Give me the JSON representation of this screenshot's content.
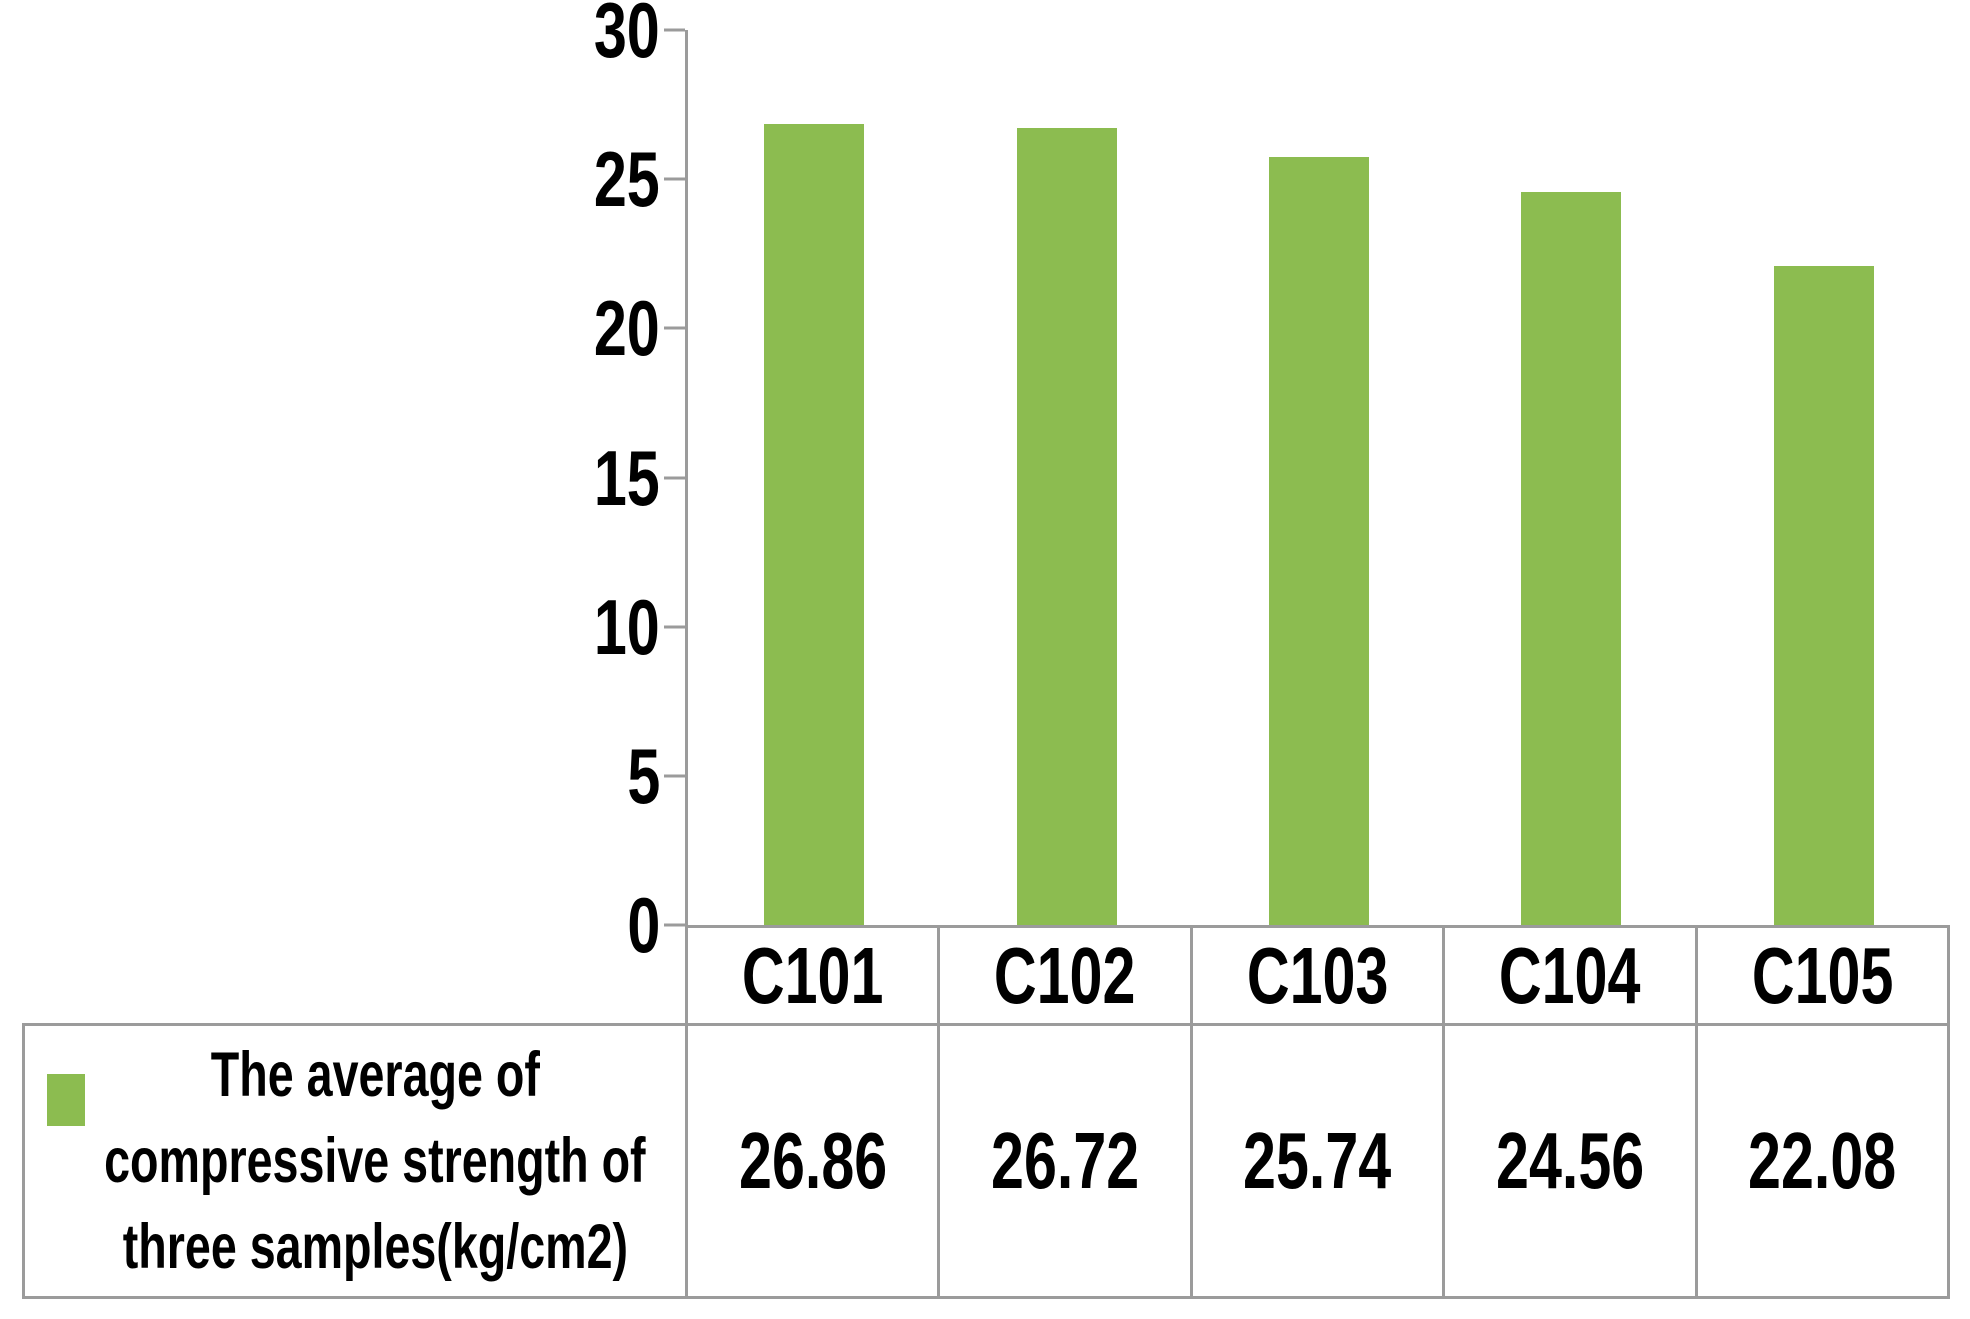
{
  "colors": {
    "bar_green": "#8CBC50",
    "line_gray": "#9B9B9B",
    "text_black": "#000000"
  },
  "chart_data": {
    "type": "bar",
    "categories": [
      "C101",
      "C102",
      "C103",
      "C104",
      "C105"
    ],
    "series": [
      {
        "name": "The average of compressive strength of three samples(kg/cm2)",
        "values": [
          26.86,
          26.72,
          25.74,
          24.56,
          22.08
        ]
      }
    ],
    "title": "",
    "xlabel": "",
    "ylabel": "",
    "ylim": [
      0,
      30
    ],
    "yticks": [
      0,
      5,
      10,
      15,
      20,
      25,
      30
    ],
    "grid": false,
    "legend_position": "bottom-table"
  },
  "table": {
    "legend_lines": [
      "The average of",
      "compressive strength of",
      "three samples(kg/cm2)"
    ],
    "categories": [
      "C101",
      "C102",
      "C103",
      "C104",
      "C105"
    ],
    "values": [
      "26.86",
      "26.72",
      "25.74",
      "24.56",
      "22.08"
    ]
  }
}
